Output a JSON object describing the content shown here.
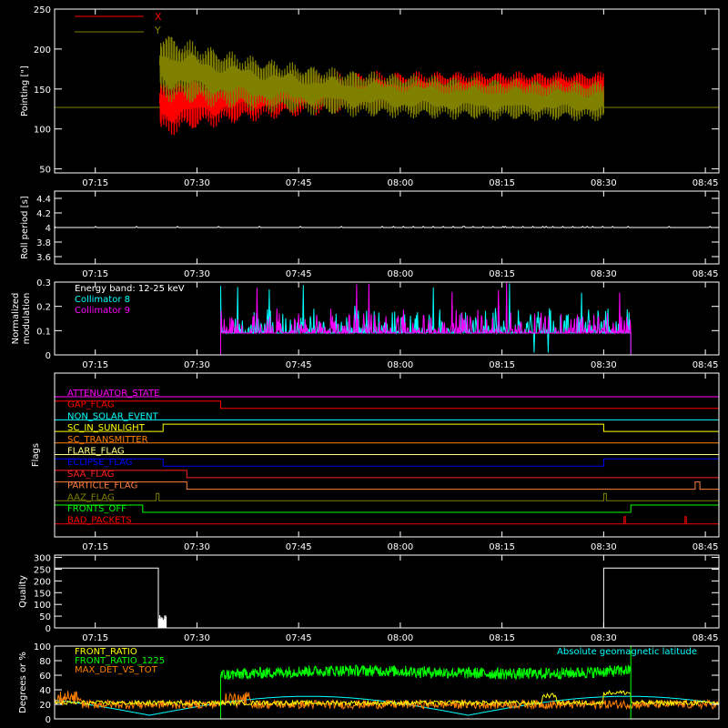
{
  "x_axis": {
    "ticks": [
      "07:15",
      "07:30",
      "07:45",
      "08:00",
      "08:15",
      "08:30",
      "08:45"
    ],
    "tick_minutes": [
      435,
      450,
      465,
      480,
      495,
      510,
      525
    ],
    "range_minutes": [
      429,
      527
    ]
  },
  "chart_data": [
    {
      "id": "pointing",
      "type": "line",
      "ylabel": "Pointing [\"]",
      "ylim": [
        45,
        250
      ],
      "yticks": [
        50,
        100,
        150,
        200,
        250
      ],
      "legend": [
        {
          "name": "X",
          "color": "#ff0000"
        },
        {
          "name": "Y",
          "color": "#808000"
        }
      ],
      "series": [
        {
          "name": "X",
          "color": "#ff0000",
          "before": 127,
          "start_min": 444.5,
          "end_min": 510,
          "upper_start": 175,
          "upper_end": 172,
          "lower_start": 88,
          "lower_end": 130
        },
        {
          "name": "Y",
          "color": "#808000",
          "before": 127,
          "start_min": 444.5,
          "end_min": 510,
          "upper_start": 225,
          "upper_end": 158,
          "lower_start": 135,
          "lower_end": 108
        }
      ]
    },
    {
      "id": "roll",
      "type": "line",
      "ylabel": "Roll period [s]",
      "ylim": [
        3.5,
        4.5
      ],
      "yticks": [
        3.6,
        3.8,
        4.0,
        4.2,
        4.4
      ],
      "series": [
        {
          "name": "",
          "color": "#ffffff",
          "value": 4.0
        }
      ]
    },
    {
      "id": "modulation",
      "type": "line",
      "ylabel_lines": [
        "Normalized",
        "modulation"
      ],
      "ylim": [
        0,
        0.3
      ],
      "yticks": [
        0.0,
        0.1,
        0.2,
        0.3
      ],
      "annotation": "Energy band: 12-25 keV",
      "legend": [
        {
          "name": "Collimator 8",
          "color": "#00ffff"
        },
        {
          "name": "Collimator 9",
          "color": "#ff00ff"
        }
      ],
      "series": [
        {
          "name": "Collimator 8",
          "color": "#00ffff",
          "start_min": 453.5,
          "end_min": 514,
          "baseline": 0.09
        },
        {
          "name": "Collimator 9",
          "color": "#ff00ff",
          "start_min": 453.5,
          "end_min": 514,
          "baseline": 0.09
        }
      ]
    },
    {
      "id": "flags",
      "type": "line",
      "ylabel": "Flags",
      "series": [
        {
          "name": "ATTENUATOR_STATE",
          "color": "#ff00ff",
          "segments": [
            [
              429,
              0
            ],
            [
              527,
              0
            ]
          ]
        },
        {
          "name": "GAP_FLAG",
          "color": "#ff0000",
          "segments": [
            [
              429,
              1
            ],
            [
              453.5,
              1
            ],
            [
              453.5,
              0
            ],
            [
              527,
              0
            ]
          ]
        },
        {
          "name": "NON_SOLAR_EVENT",
          "color": "#00ffff",
          "segments": [
            [
              429,
              0
            ],
            [
              527,
              0
            ]
          ]
        },
        {
          "name": "SC_IN_SUNLIGHT",
          "color": "#ffff00",
          "segments": [
            [
              429,
              0
            ],
            [
              445,
              0
            ],
            [
              445,
              1
            ],
            [
              510,
              1
            ],
            [
              510,
              0
            ],
            [
              527,
              0
            ]
          ]
        },
        {
          "name": "SC_TRANSMITTER",
          "color": "#ff8000",
          "segments": [
            [
              429,
              0
            ],
            [
              527,
              0
            ]
          ]
        },
        {
          "name": "FLARE_FLAG",
          "color": "#ffff80",
          "segments": [
            [
              429,
              0
            ],
            [
              527,
              0
            ]
          ]
        },
        {
          "name": "ECLIPSE_FLAG",
          "color": "#0000ff",
          "segments": [
            [
              429,
              1
            ],
            [
              445,
              1
            ],
            [
              445,
              0
            ],
            [
              510,
              0
            ],
            [
              510,
              1
            ],
            [
              527,
              1
            ]
          ]
        },
        {
          "name": "SAA_FLAG",
          "color": "#ff2020",
          "segments": [
            [
              429,
              1
            ],
            [
              448.5,
              1
            ],
            [
              448.5,
              0
            ],
            [
              527,
              0
            ]
          ]
        },
        {
          "name": "PARTICLE_FLAG",
          "color": "#ff8040",
          "segments": [
            [
              429,
              1
            ],
            [
              448.5,
              1
            ],
            [
              448.5,
              0
            ],
            [
              523.5,
              0
            ],
            [
              523.5,
              1
            ],
            [
              524.2,
              1
            ],
            [
              524.2,
              0
            ],
            [
              527,
              0
            ]
          ]
        },
        {
          "name": "AAZ_FLAG",
          "color": "#808000",
          "segments": [
            [
              429,
              0
            ],
            [
              444,
              0
            ],
            [
              444,
              1
            ],
            [
              444.4,
              1
            ],
            [
              444.4,
              0
            ],
            [
              510,
              0
            ],
            [
              510,
              1
            ],
            [
              510.4,
              1
            ],
            [
              510.4,
              0
            ],
            [
              527,
              0
            ]
          ]
        },
        {
          "name": "FRONTS_OFF",
          "color": "#00ff00",
          "segments": [
            [
              429,
              1
            ],
            [
              442,
              1
            ],
            [
              442,
              0
            ],
            [
              514,
              0
            ],
            [
              514,
              1
            ],
            [
              527,
              1
            ]
          ]
        },
        {
          "name": "BAD_PACKETS",
          "color": "#ff0000",
          "segments": [
            [
              429,
              0
            ],
            [
              513,
              0
            ],
            [
              513,
              1
            ],
            [
              513.2,
              1
            ],
            [
              513.2,
              0
            ],
            [
              522,
              0
            ],
            [
              522,
              1
            ],
            [
              522.2,
              1
            ],
            [
              522.2,
              0
            ],
            [
              527,
              0
            ]
          ]
        }
      ]
    },
    {
      "id": "quality",
      "type": "line",
      "ylabel": "Quality",
      "ylim": [
        0,
        310
      ],
      "yticks": [
        0,
        50,
        100,
        150,
        200,
        250,
        300
      ],
      "series": [
        {
          "name": "",
          "color": "#ffffff",
          "points": [
            [
              429,
              255
            ],
            [
              444.3,
              255
            ],
            [
              444.3,
              0
            ],
            [
              510,
              0
            ],
            [
              510,
              255
            ],
            [
              527,
              255
            ]
          ]
        }
      ]
    },
    {
      "id": "degrees",
      "type": "line",
      "ylabel": "Degrees or %",
      "ylim": [
        0,
        100
      ],
      "yticks": [
        0,
        20,
        40,
        60,
        80,
        100
      ],
      "legend": [
        {
          "name": "FRONT_RATIO",
          "color": "#ffff00"
        },
        {
          "name": "FRONT_RATIO_1225",
          "color": "#00ff00"
        },
        {
          "name": "MAX_DET_VS_TOT",
          "color": "#ff8000"
        }
      ],
      "right_label": {
        "text": "Absolute geomagnetic latitude",
        "color": "#00ffff"
      },
      "series": [
        {
          "name": "FRONT_RATIO_1225",
          "color": "#00ff00",
          "start_min": 453.5,
          "end_min": 514,
          "level_start": 60,
          "level_end": 68
        },
        {
          "name": "MAX_DET_VS_TOT",
          "color": "#ff8000",
          "level": 20
        },
        {
          "name": "FRONT_RATIO",
          "color": "#ffff00",
          "level": 22
        },
        {
          "name": "Absolute geomagnetic latitude",
          "color": "#00ffff",
          "amplitude": 26
        }
      ]
    }
  ]
}
